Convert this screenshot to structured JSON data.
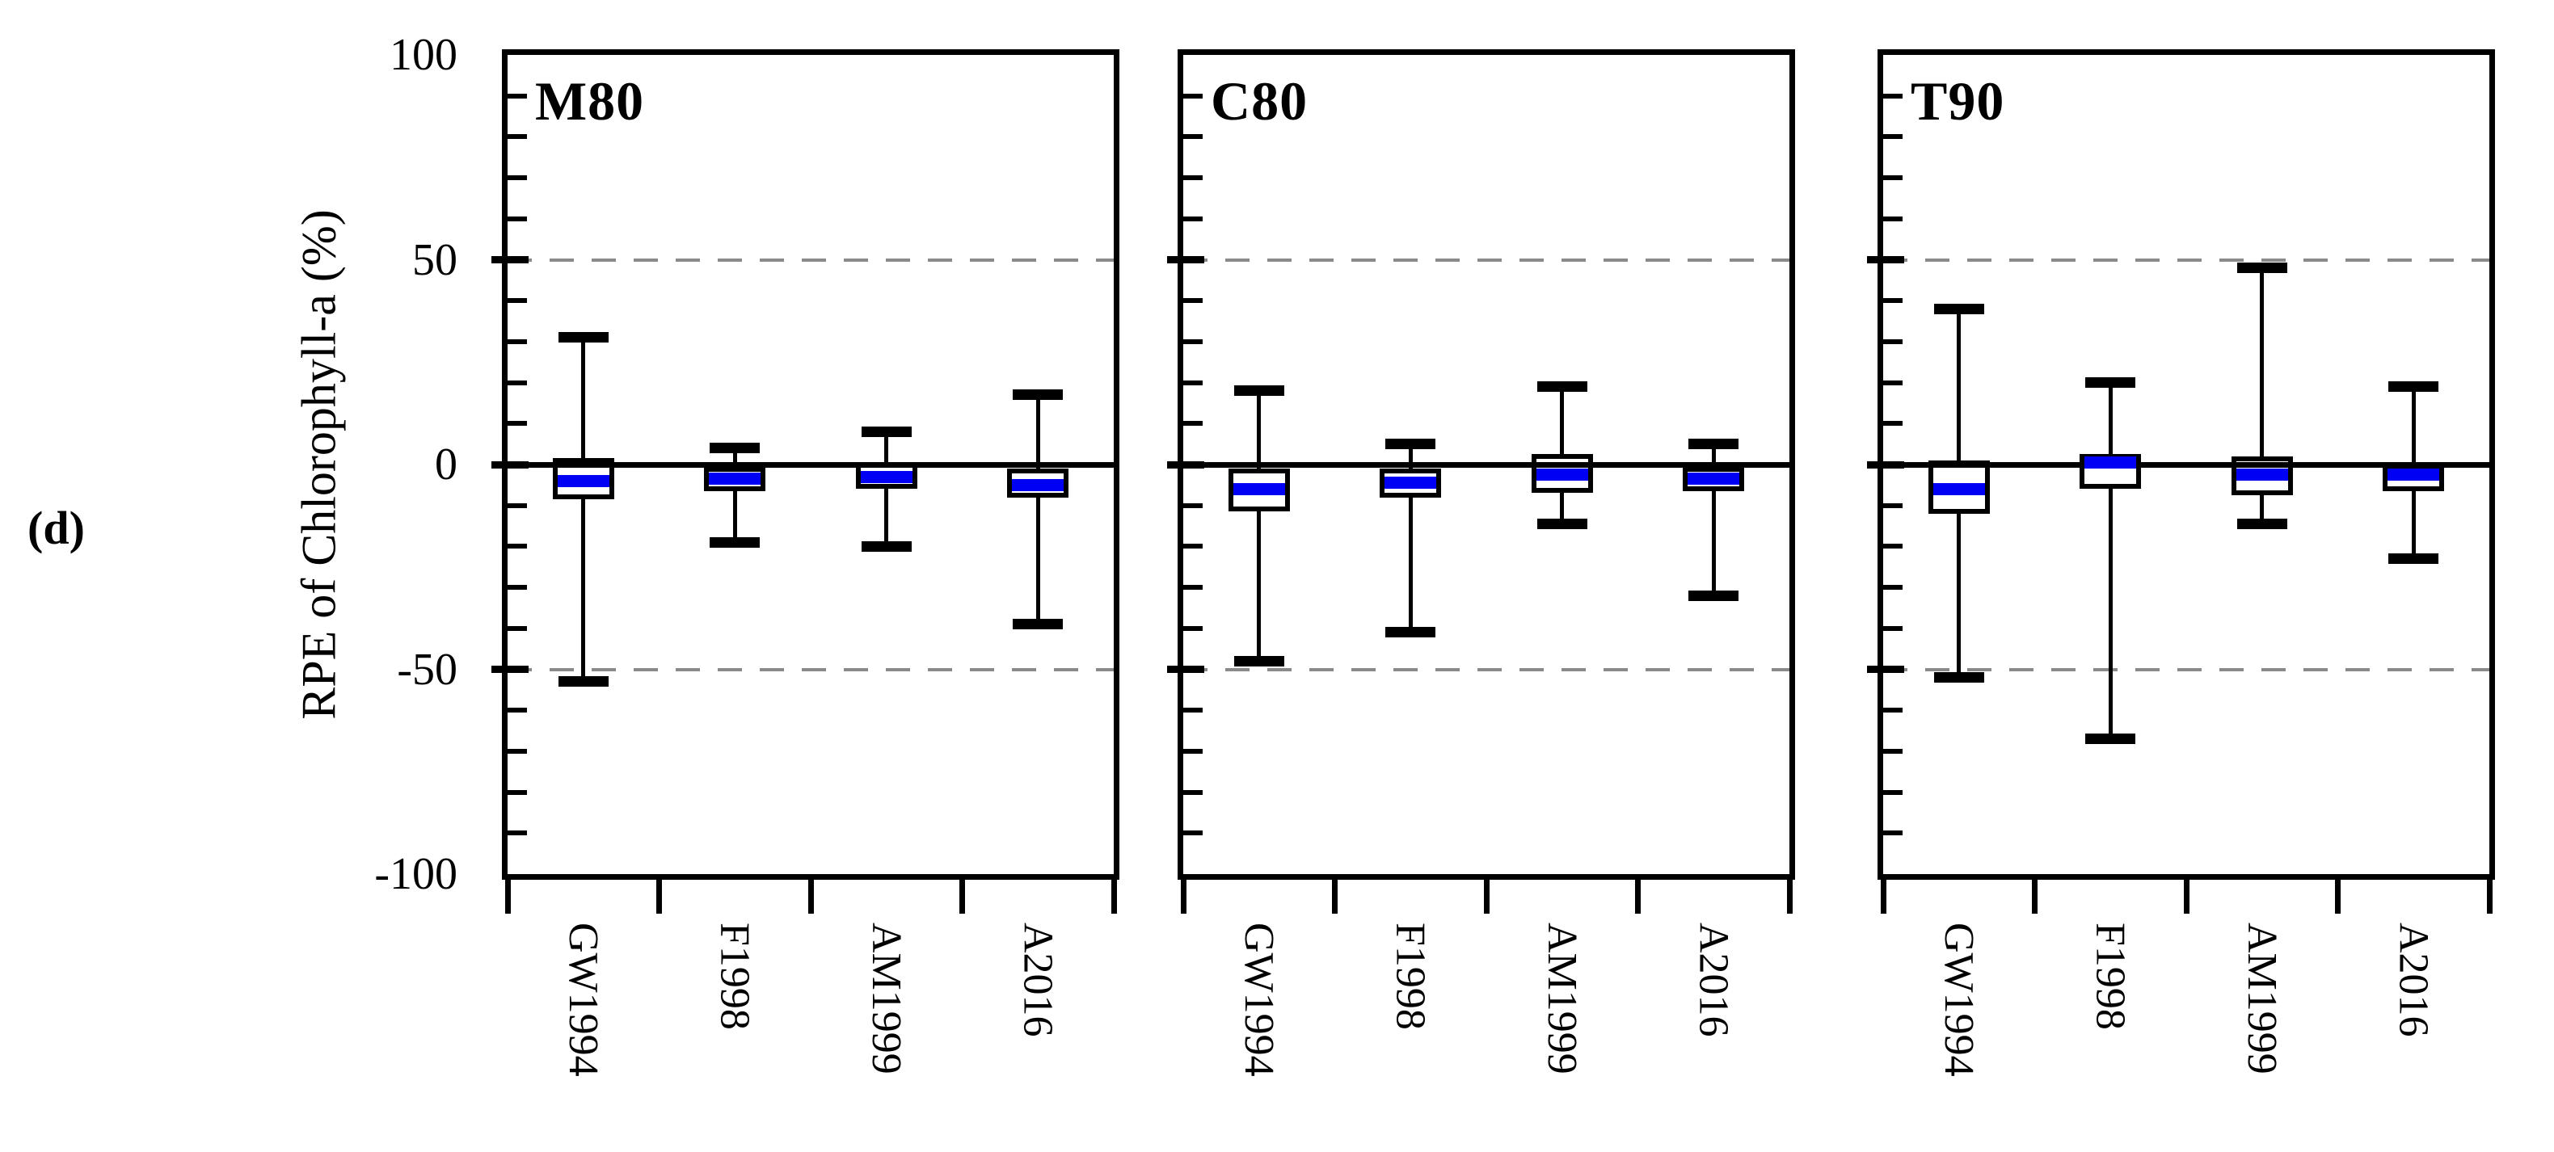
{
  "chart_data": {
    "type": "box",
    "figure_label": "(d)",
    "title": "",
    "xlabel": "",
    "ylabel": "RPE of Chlorophyll-a (%)",
    "ylim": [
      -100,
      100
    ],
    "yticks": [
      100,
      50,
      0,
      -50,
      -100
    ],
    "ytick_labels": [
      "100",
      "50",
      "0",
      "-50",
      "-100"
    ],
    "minor_tick_step": 10,
    "reference_dashed_lines": [
      50,
      -50
    ],
    "zero_line": 0,
    "grid": "off",
    "legend_position": "none",
    "categories": [
      "GW1994",
      "F1998",
      "AM1999",
      "A2016"
    ],
    "panels": [
      {
        "title": "M80",
        "boxes": [
          {
            "category": "GW1994",
            "whisker_low": -53,
            "q1": -8.5,
            "median": -4,
            "q3": 1.5,
            "whisker_high": 31
          },
          {
            "category": "F1998",
            "whisker_low": -19,
            "q1": -6.5,
            "median": -3.5,
            "q3": -0.5,
            "whisker_high": 4
          },
          {
            "category": "AM1999",
            "whisker_low": -20,
            "q1": -6,
            "median": -3,
            "q3": 0.5,
            "whisker_high": 8
          },
          {
            "category": "A2016",
            "whisker_low": -39,
            "q1": -8,
            "median": -5,
            "q3": -1,
            "whisker_high": 17
          }
        ]
      },
      {
        "title": "C80",
        "boxes": [
          {
            "category": "GW1994",
            "whisker_low": -48,
            "q1": -11.5,
            "median": -6,
            "q3": -1,
            "whisker_high": 18
          },
          {
            "category": "F1998",
            "whisker_low": -41,
            "q1": -8,
            "median": -4.5,
            "q3": -1,
            "whisker_high": 5
          },
          {
            "category": "AM1999",
            "whisker_low": -14.5,
            "q1": -7,
            "median": -2.5,
            "q3": 2.5,
            "whisker_high": 19
          },
          {
            "category": "A2016",
            "whisker_low": -32,
            "q1": -6.5,
            "median": -3.5,
            "q3": -0.5,
            "whisker_high": 5
          }
        ]
      },
      {
        "title": "T90",
        "boxes": [
          {
            "category": "GW1994",
            "whisker_low": -52,
            "q1": -12,
            "median": -6,
            "q3": 1,
            "whisker_high": 38
          },
          {
            "category": "F1998",
            "whisker_low": -67,
            "q1": -6,
            "median": 0.5,
            "q3": 2.5,
            "whisker_high": 20
          },
          {
            "category": "AM1999",
            "whisker_low": -14.5,
            "q1": -7.5,
            "median": -2.5,
            "q3": 2,
            "whisker_high": 48
          },
          {
            "category": "A2016",
            "whisker_low": -23,
            "q1": -6.5,
            "median": -2.5,
            "q3": 0,
            "whisker_high": 19
          }
        ]
      }
    ],
    "colors": {
      "median": "#0000F5",
      "line": "#000000",
      "reference_dash": "#8a8a8a",
      "background": "#ffffff"
    }
  }
}
